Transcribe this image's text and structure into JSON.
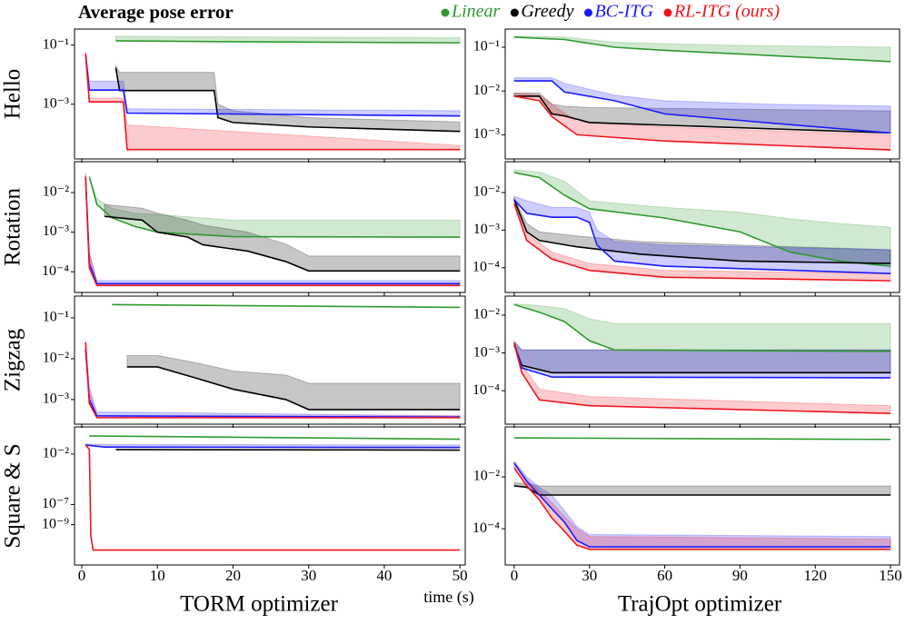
{
  "title": "Average pose error",
  "legend": [
    {
      "name": "Linear",
      "color": "#2e9a2e"
    },
    {
      "name": "Greedy",
      "color": "#000000"
    },
    {
      "name": "BC-ITG",
      "color": "#1a1aff"
    },
    {
      "name": "RL-ITG (ours)",
      "color": "#f0141e"
    }
  ],
  "row_labels": [
    "Hello",
    "Rotation",
    "Zigzag",
    "Square & S"
  ],
  "column_labels": [
    "TORM optimizer",
    "TrajOpt optimizer"
  ],
  "x_unit_label": "time (s)",
  "chart_data": [
    {
      "type": "line",
      "log_y": true,
      "xlim": [
        -0.96,
        50.7
      ],
      "ylim": [
        1.4e-05,
        0.35
      ],
      "xticks": [
        0,
        10,
        20,
        30,
        40,
        50
      ],
      "yticks": [
        {
          "value": 0.1,
          "label": "10⁻¹"
        },
        {
          "value": 0.001,
          "label": "10⁻³"
        }
      ],
      "series": [
        {
          "x": [
            4.5,
            20,
            50
          ],
          "values": [
            0.14,
            0.13,
            0.12
          ],
          "upper": [
            0.2,
            0.19,
            0.18
          ]
        },
        {
          "x": [
            4.5,
            5,
            17.5,
            18,
            20,
            30,
            50
          ],
          "values": [
            0.017,
            0.0029,
            0.0029,
            0.00035,
            0.00024,
            0.00017,
            0.00012
          ],
          "upper": [
            0.02,
            0.012,
            0.012,
            0.001,
            0.0006,
            0.00035,
            0.00025
          ]
        },
        {
          "x": [
            0.5,
            1,
            5.5,
            6,
            50
          ],
          "values": [
            0.05,
            0.003,
            0.003,
            0.0005,
            0.0004
          ],
          "upper": [
            0.06,
            0.006,
            0.006,
            0.0007,
            0.0006
          ]
        },
        {
          "x": [
            0.5,
            1,
            5.5,
            6,
            50
          ],
          "values": [
            0.05,
            0.0012,
            0.0012,
            2.9e-05,
            2.9e-05
          ],
          "upper": [
            0.06,
            0.0016,
            0.0016,
            0.0002,
            4e-05
          ]
        }
      ]
    },
    {
      "type": "line",
      "log_y": true,
      "xlim": [
        -3.6,
        153.6
      ],
      "ylim": [
        0.00028,
        0.26
      ],
      "xticks": [
        0,
        30,
        60,
        90,
        120,
        150
      ],
      "yticks": [
        {
          "value": 0.1,
          "label": "10⁻¹"
        },
        {
          "value": 0.01,
          "label": "10⁻²"
        },
        {
          "value": 0.001,
          "label": "10⁻³"
        }
      ],
      "series": [
        {
          "x": [
            0,
            20,
            40,
            60,
            90,
            150
          ],
          "values": [
            0.17,
            0.15,
            0.1,
            0.085,
            0.07,
            0.047
          ],
          "upper": [
            0.18,
            0.17,
            0.13,
            0.12,
            0.11,
            0.1
          ]
        },
        {
          "x": [
            0,
            10,
            15,
            20,
            30,
            150
          ],
          "values": [
            0.0076,
            0.0076,
            0.003,
            0.0027,
            0.0019,
            0.0011
          ],
          "upper": [
            0.009,
            0.009,
            0.005,
            0.0045,
            0.0042,
            0.0035
          ]
        },
        {
          "x": [
            0,
            15,
            20,
            40,
            60,
            100,
            150
          ],
          "values": [
            0.017,
            0.017,
            0.0095,
            0.006,
            0.003,
            0.0019,
            0.0011
          ],
          "upper": [
            0.02,
            0.02,
            0.015,
            0.008,
            0.006,
            0.005,
            0.0045
          ]
        },
        {
          "x": [
            0,
            10,
            15,
            25,
            60,
            150
          ],
          "values": [
            0.0076,
            0.006,
            0.0026,
            0.001,
            0.00072,
            0.00045
          ],
          "upper": [
            0.009,
            0.008,
            0.005,
            0.002,
            0.0015,
            0.001
          ]
        }
      ]
    },
    {
      "type": "line",
      "log_y": true,
      "xlim": [
        -0.96,
        50.7
      ],
      "ylim": [
        3e-05,
        0.06
      ],
      "xticks": [
        0,
        10,
        20,
        30,
        40,
        50
      ],
      "yticks": [
        {
          "value": 0.01,
          "label": "10⁻²"
        },
        {
          "value": 0.001,
          "label": "10⁻³"
        },
        {
          "value": 0.0001,
          "label": "10⁻⁴"
        }
      ],
      "series": [
        {
          "x": [
            1,
            2,
            4,
            7,
            10,
            20,
            50
          ],
          "values": [
            0.025,
            0.005,
            0.0023,
            0.0014,
            0.001,
            0.00077,
            0.00075
          ],
          "upper": [
            0.025,
            0.007,
            0.004,
            0.003,
            0.0028,
            0.002,
            0.002
          ]
        },
        {
          "x": [
            3,
            8,
            10,
            14,
            16,
            22,
            27,
            30,
            50
          ],
          "values": [
            0.0025,
            0.002,
            0.001,
            0.00075,
            0.00048,
            0.00033,
            0.00018,
            0.000105,
            0.000105
          ],
          "upper": [
            0.005,
            0.004,
            0.003,
            0.002,
            0.0015,
            0.001,
            0.0005,
            0.00025,
            0.00025
          ]
        },
        {
          "x": [
            0.5,
            1,
            2,
            50
          ],
          "values": [
            0.025,
            0.00016,
            5e-05,
            5e-05
          ],
          "upper": [
            0.03,
            0.0003,
            6e-05,
            6e-05
          ]
        },
        {
          "x": [
            0.5,
            1,
            2,
            50
          ],
          "values": [
            0.025,
            0.000125,
            4.5e-05,
            4.5e-05
          ],
          "upper": [
            0.03,
            0.0003,
            5e-05,
            5e-05
          ]
        }
      ]
    },
    {
      "type": "line",
      "log_y": true,
      "xlim": [
        -3.6,
        153.6
      ],
      "ylim": [
        2.2e-05,
        0.066
      ],
      "xticks": [
        0,
        30,
        60,
        90,
        120,
        150
      ],
      "yticks": [
        {
          "value": 0.01,
          "label": "10⁻²"
        },
        {
          "value": 0.001,
          "label": "10⁻³"
        },
        {
          "value": 0.0001,
          "label": "10⁻⁴"
        }
      ],
      "series": [
        {
          "x": [
            0,
            10,
            20,
            30,
            60,
            90,
            110,
            130,
            150
          ],
          "values": [
            0.034,
            0.025,
            0.0085,
            0.0037,
            0.0021,
            0.0009,
            0.00026,
            0.00015,
            0.00011
          ],
          "upper": [
            0.04,
            0.035,
            0.02,
            0.006,
            0.004,
            0.003,
            0.002,
            0.0015,
            0.0012
          ]
        },
        {
          "x": [
            0,
            5,
            10,
            25,
            50,
            90,
            150
          ],
          "values": [
            0.0064,
            0.0009,
            0.00053,
            0.00036,
            0.00023,
            0.00015,
            0.00013
          ],
          "upper": [
            0.007,
            0.0015,
            0.0009,
            0.0007,
            0.0005,
            0.0004,
            0.0003
          ]
        },
        {
          "x": [
            0,
            5,
            15,
            25,
            30,
            33,
            40,
            60,
            150
          ],
          "values": [
            0.0064,
            0.0028,
            0.0022,
            0.0022,
            0.0016,
            0.0004,
            0.00015,
            0.00011,
            7e-05
          ],
          "upper": [
            0.008,
            0.006,
            0.004,
            0.004,
            0.003,
            0.001,
            0.0005,
            0.0004,
            0.0003
          ]
        },
        {
          "x": [
            0,
            5,
            15,
            30,
            60,
            150
          ],
          "values": [
            0.005,
            0.00053,
            0.00017,
            8.5e-05,
            5.6e-05,
            4.5e-05
          ],
          "upper": [
            0.0075,
            0.0008,
            0.00026,
            0.00013,
            8.5e-05,
            7e-05
          ]
        }
      ]
    },
    {
      "type": "line",
      "log_y": true,
      "xlim": [
        -0.96,
        50.7
      ],
      "ylim": [
        0.00025,
        0.34
      ],
      "xticks": [
        0,
        10,
        20,
        30,
        40,
        50
      ],
      "yticks": [
        {
          "value": 0.1,
          "label": "10⁻¹"
        },
        {
          "value": 0.01,
          "label": "10⁻²"
        },
        {
          "value": 0.001,
          "label": "10⁻³"
        }
      ],
      "series": [
        {
          "x": [
            4,
            50
          ],
          "values": [
            0.21,
            0.18
          ]
        },
        {
          "x": [
            6,
            10,
            15,
            20,
            27,
            30,
            50
          ],
          "values": [
            0.0063,
            0.0063,
            0.0034,
            0.0018,
            0.001,
            0.00057,
            0.00057
          ],
          "upper": [
            0.012,
            0.012,
            0.008,
            0.005,
            0.004,
            0.0025,
            0.0025
          ]
        },
        {
          "x": [
            0.5,
            1,
            2,
            50
          ],
          "values": [
            0.017,
            0.001,
            0.0004,
            0.00037
          ],
          "upper": [
            0.025,
            0.002,
            0.0005,
            0.0004
          ]
        },
        {
          "x": [
            0.5,
            1,
            2,
            50
          ],
          "values": [
            0.025,
            0.0008,
            0.00036,
            0.00036
          ],
          "upper": [
            0.03,
            0.0015,
            0.0004,
            0.0004
          ]
        }
      ]
    },
    {
      "type": "line",
      "log_y": true,
      "xlim": [
        -3.6,
        153.6
      ],
      "ylim": [
        1.3e-05,
        0.032
      ],
      "xticks": [
        0,
        30,
        60,
        90,
        120,
        150
      ],
      "yticks": [
        {
          "value": 0.01,
          "label": "10⁻²"
        },
        {
          "value": 0.001,
          "label": "10⁻³"
        },
        {
          "value": 0.0001,
          "label": "10⁻⁴"
        }
      ],
      "series": [
        {
          "x": [
            0,
            10,
            20,
            30,
            40,
            150
          ],
          "values": [
            0.019,
            0.012,
            0.0068,
            0.0021,
            0.0012,
            0.0011
          ],
          "upper": [
            0.02,
            0.018,
            0.015,
            0.008,
            0.006,
            0.006
          ]
        },
        {
          "x": [
            0,
            3,
            15,
            150
          ],
          "values": [
            0.0016,
            0.00047,
            0.0003,
            0.0003
          ],
          "upper": [
            0.002,
            0.0012,
            0.0012,
            0.0012
          ]
        },
        {
          "x": [
            0,
            3,
            15,
            150
          ],
          "values": [
            0.0018,
            0.0004,
            0.00023,
            0.00022
          ],
          "upper": [
            0.002,
            0.0012,
            0.0012,
            0.0012
          ]
        },
        {
          "x": [
            0,
            3,
            10,
            30,
            150
          ],
          "values": [
            0.0018,
            0.0003,
            5.7e-05,
            4e-05,
            2.5e-05
          ],
          "upper": [
            0.002,
            0.0005,
            0.00011,
            7e-05,
            4e-05
          ]
        }
      ]
    },
    {
      "type": "line",
      "log_y": true,
      "xlim": [
        -0.96,
        50.7
      ],
      "ylim": [
        1e-13,
        5
      ],
      "xticks": [
        0,
        10,
        20,
        30,
        40,
        50
      ],
      "yticks": [
        {
          "value": 0.01,
          "label": "10⁻²"
        },
        {
          "value": 1e-07,
          "label": "10⁻⁷"
        },
        {
          "value": 1e-09,
          "label": "10⁻⁹"
        }
      ],
      "series": [
        {
          "x": [
            1,
            50
          ],
          "values": [
            0.63,
            0.3
          ]
        },
        {
          "x": [
            4.5,
            50
          ],
          "values": [
            0.028,
            0.025
          ]
        },
        {
          "x": [
            0.5,
            3,
            50
          ],
          "values": [
            0.08,
            0.05,
            0.045
          ],
          "upper": [
            0.1,
            0.09,
            0.08
          ]
        },
        {
          "x": [
            0.5,
            1,
            1.2,
            1.5,
            50
          ],
          "values": [
            0.08,
            0.03,
            8e-11,
            3e-12,
            3e-12
          ]
        }
      ]
    },
    {
      "type": "line",
      "log_y": true,
      "xlim": [
        -3.6,
        153.6
      ],
      "ylim": [
        4e-06,
        0.85
      ],
      "xticks": [
        0,
        30,
        60,
        90,
        120,
        150
      ],
      "yticks": [
        {
          "value": 0.01,
          "label": "10⁻²"
        },
        {
          "value": 0.0001,
          "label": "10⁻⁴"
        }
      ],
      "series": [
        {
          "x": [
            0,
            150
          ],
          "values": [
            0.32,
            0.28
          ]
        },
        {
          "x": [
            0,
            5,
            10,
            150
          ],
          "values": [
            0.0045,
            0.004,
            0.002,
            0.002
          ],
          "upper": [
            0.006,
            0.0055,
            0.0045,
            0.0045
          ]
        },
        {
          "x": [
            0,
            5,
            10,
            15,
            20,
            25,
            30,
            150
          ],
          "values": [
            0.034,
            0.0067,
            0.002,
            0.00059,
            0.00018,
            3.5e-05,
            2e-05,
            2e-05
          ],
          "upper": [
            0.04,
            0.01,
            0.004,
            0.002,
            0.0005,
            0.00012,
            6e-05,
            5e-05
          ]
        },
        {
          "x": [
            0,
            5,
            10,
            15,
            20,
            25,
            30,
            150
          ],
          "values": [
            0.022,
            0.0045,
            0.0013,
            0.00026,
            8e-05,
            2.3e-05,
            1.6e-05,
            1.6e-05
          ],
          "upper": [
            0.03,
            0.008,
            0.003,
            0.001,
            0.0003,
            0.0001,
            5e-05,
            4e-05
          ]
        }
      ]
    }
  ]
}
